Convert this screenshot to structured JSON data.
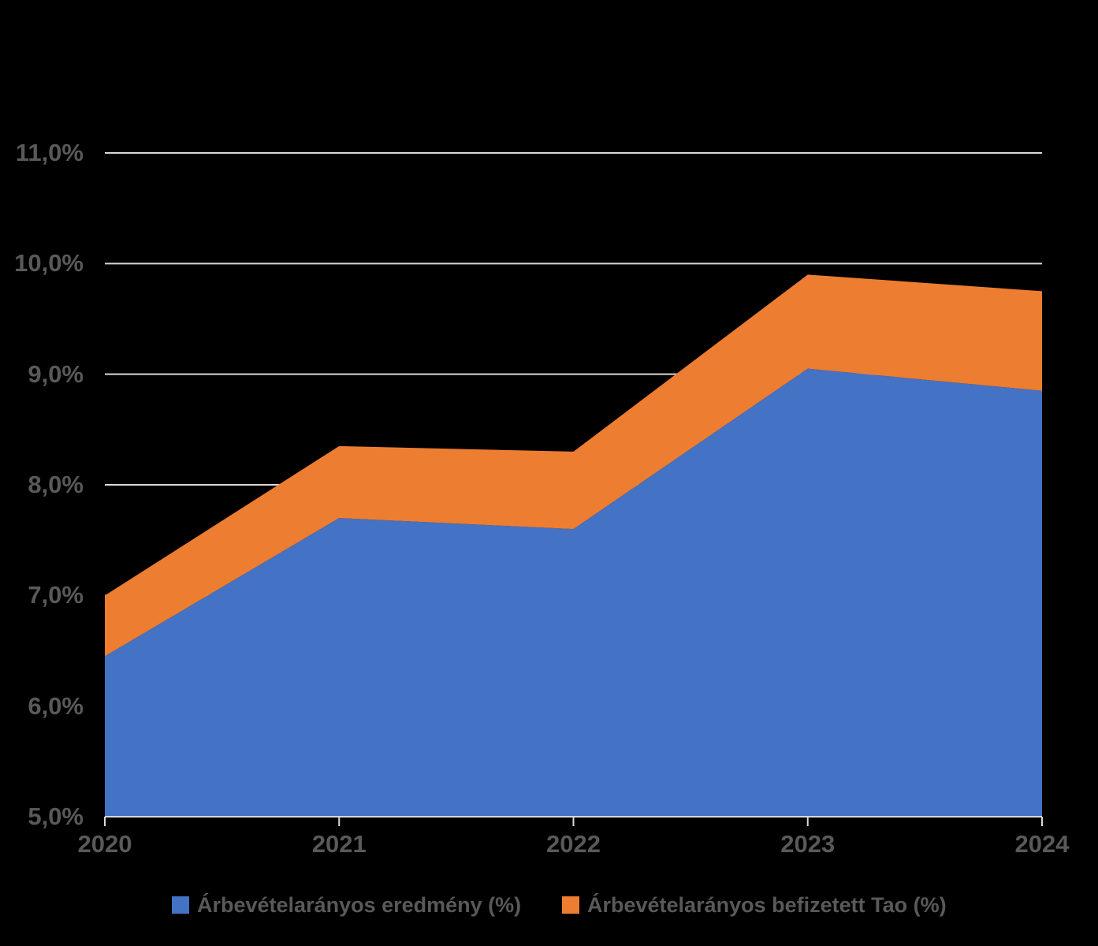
{
  "background_color": "#000000",
  "text_color": "#595959",
  "gridline_color": "#D9D9D9",
  "chart_data": {
    "type": "area",
    "stacked": true,
    "title": "",
    "categories": [
      "2020",
      "2021",
      "2022",
      "2023",
      "2024"
    ],
    "series": [
      {
        "name": "Árbevételarányos eredmény (%)",
        "color": "#4472C4",
        "values": [
          6.45,
          7.7,
          7.6,
          9.05,
          8.85
        ]
      },
      {
        "name": "Árbevételarányos befizetett Tao (%)",
        "color": "#ED7D31",
        "values": [
          0.55,
          0.65,
          0.7,
          0.85,
          0.9
        ]
      }
    ],
    "stacked_totals": [
      7.0,
      8.35,
      8.3,
      9.9,
      9.75
    ],
    "y_axis": {
      "min": 5.0,
      "max": 11.0,
      "step": 1.0,
      "tick_labels": [
        "5,0%",
        "6,0%",
        "7,0%",
        "8,0%",
        "9,0%",
        "10,0%",
        "11,0%"
      ]
    },
    "x_axis": {
      "tick_labels": [
        "2020",
        "2021",
        "2022",
        "2023",
        "2024"
      ]
    },
    "grid": true,
    "legend_position": "bottom"
  }
}
